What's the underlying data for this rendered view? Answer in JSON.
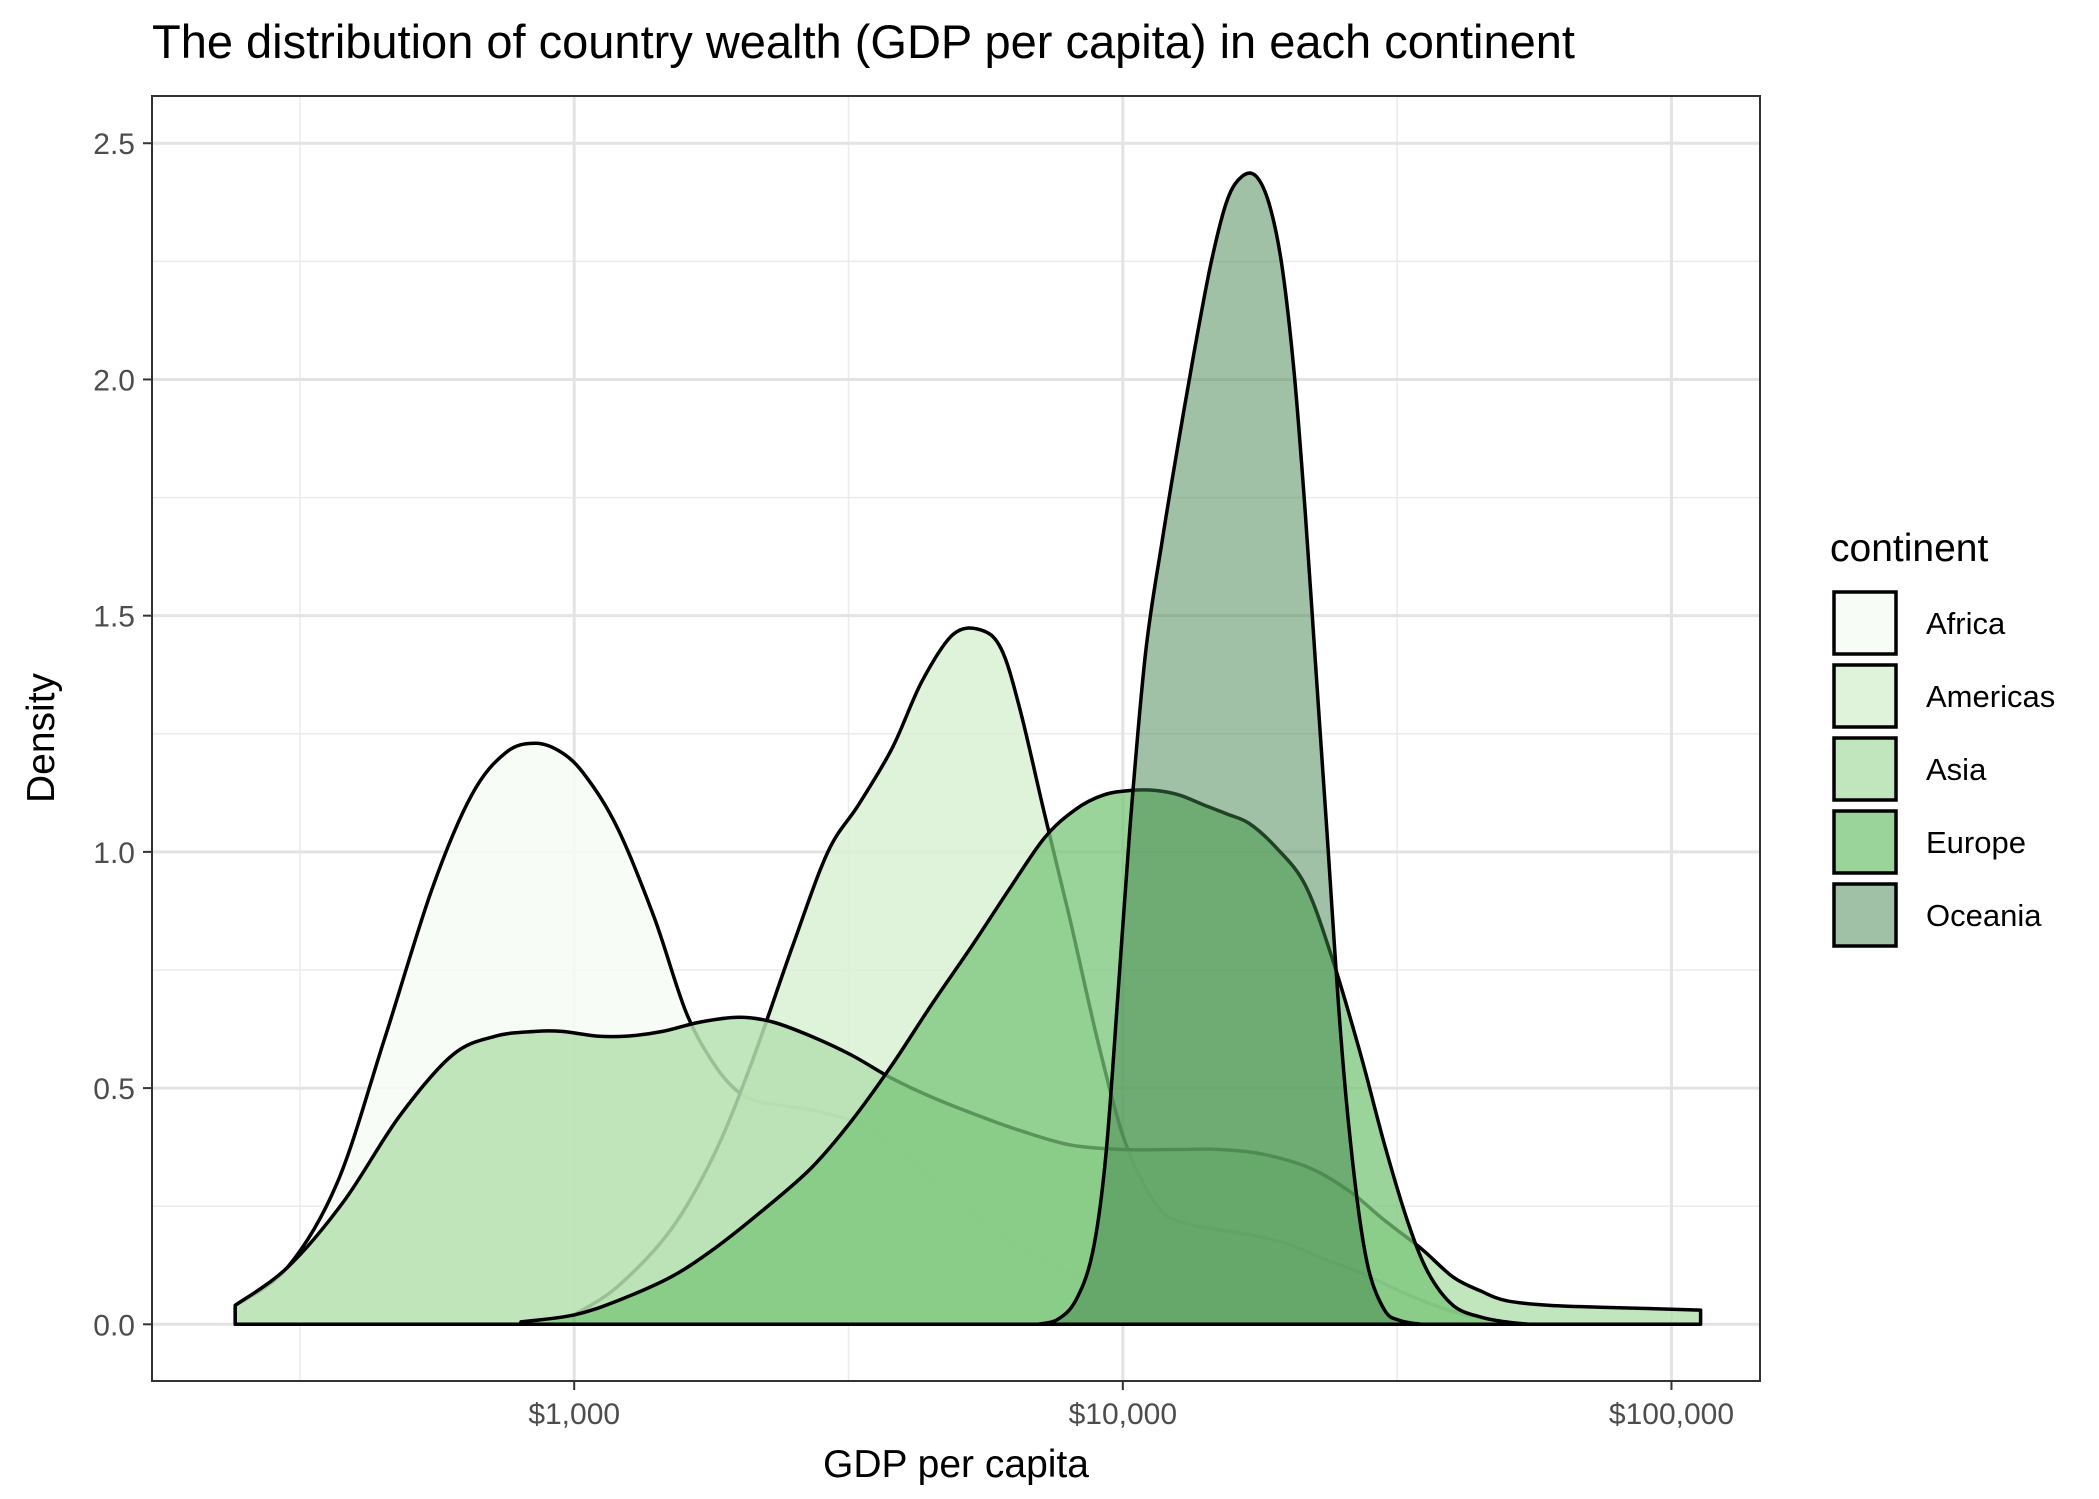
{
  "chart_data": {
    "type": "area",
    "title": "The distribution of country wealth (GDP per capita) in each continent",
    "xlabel": "GDP per capita",
    "ylabel": "Density",
    "x_scale": "log10",
    "xlim": [
      170,
      145000
    ],
    "ylim": [
      -0.12,
      2.6
    ],
    "x_ticks": [
      {
        "value": 1000,
        "label": "$1,000"
      },
      {
        "value": 10000,
        "label": "$10,000"
      },
      {
        "value": 100000,
        "label": "$100,000"
      }
    ],
    "y_ticks": [
      {
        "value": 0,
        "label": "0.0"
      },
      {
        "value": 0.5,
        "label": "0.5"
      },
      {
        "value": 1,
        "label": "1.0"
      },
      {
        "value": 1.5,
        "label": "1.5"
      },
      {
        "value": 2,
        "label": "2.0"
      },
      {
        "value": 2.5,
        "label": "2.5"
      }
    ],
    "grid": true,
    "legend": {
      "title": "continent",
      "position": "right"
    },
    "series": [
      {
        "name": "Africa",
        "color": "#f7fcf5",
        "opacity": 0.85,
        "x": [
          241,
          300,
          370,
          450,
          550,
          650,
          750,
          850,
          950,
          1050,
          1200,
          1400,
          1600,
          1800,
          2000,
          2200,
          2500,
          2800,
          3200,
          3700,
          4300,
          5000,
          6000,
          7000,
          8500,
          10000,
          12000,
          15000,
          20000,
          25000,
          30000,
          40000,
          50000,
          60000
        ],
        "y": [
          0.04,
          0.12,
          0.3,
          0.6,
          0.92,
          1.12,
          1.21,
          1.23,
          1.21,
          1.16,
          1.05,
          0.86,
          0.66,
          0.55,
          0.49,
          0.47,
          0.46,
          0.45,
          0.43,
          0.39,
          0.33,
          0.26,
          0.19,
          0.14,
          0.1,
          0.07,
          0.05,
          0.03,
          0.015,
          0.01,
          0.005,
          0.002,
          0.001,
          0
        ]
      },
      {
        "name": "Americas",
        "color": "#d9f0d3",
        "opacity": 0.85,
        "x": [
          1000,
          1200,
          1500,
          1800,
          2100,
          2500,
          2900,
          3300,
          3800,
          4300,
          4900,
          5500,
          6000,
          6500,
          7200,
          8000,
          9000,
          10000,
          11000,
          12000,
          13500,
          15000,
          17000,
          20000,
          23000,
          27000,
          32000,
          37000,
          42000,
          47000,
          52000
        ],
        "y": [
          0.02,
          0.08,
          0.2,
          0.36,
          0.55,
          0.8,
          1.0,
          1.1,
          1.22,
          1.36,
          1.46,
          1.47,
          1.43,
          1.3,
          1.08,
          0.86,
          0.6,
          0.4,
          0.29,
          0.23,
          0.21,
          0.2,
          0.19,
          0.17,
          0.14,
          0.11,
          0.07,
          0.04,
          0.02,
          0.01,
          0
        ]
      },
      {
        "name": "Asia",
        "color": "#b6e0b0",
        "opacity": 0.85,
        "x": [
          241,
          300,
          380,
          480,
          600,
          720,
          850,
          950,
          1100,
          1250,
          1450,
          1700,
          2000,
          2300,
          2700,
          3200,
          3800,
          4500,
          5500,
          6500,
          8000,
          10000,
          12500,
          15000,
          18000,
          22000,
          26000,
          30000,
          35000,
          40000,
          45000,
          50000,
          60000,
          80000,
          100000,
          113000
        ],
        "y": [
          0.04,
          0.12,
          0.26,
          0.44,
          0.57,
          0.61,
          0.62,
          0.62,
          0.61,
          0.61,
          0.62,
          0.64,
          0.65,
          0.64,
          0.61,
          0.57,
          0.52,
          0.48,
          0.44,
          0.41,
          0.38,
          0.37,
          0.37,
          0.37,
          0.36,
          0.33,
          0.28,
          0.22,
          0.16,
          0.1,
          0.07,
          0.05,
          0.04,
          0.035,
          0.032,
          0.03
        ]
      },
      {
        "name": "Europe",
        "color": "#78c679",
        "opacity": 0.75,
        "x": [
          800,
          1000,
          1200,
          1500,
          1800,
          2200,
          2700,
          3200,
          3800,
          4500,
          5300,
          6200,
          7200,
          8200,
          9200,
          10300,
          11500,
          12700,
          14000,
          15500,
          17000,
          19000,
          21500,
          24000,
          27000,
          30000,
          33000,
          36000,
          40000,
          45000,
          50000,
          55000
        ],
        "y": [
          0.005,
          0.02,
          0.05,
          0.1,
          0.16,
          0.24,
          0.33,
          0.43,
          0.55,
          0.68,
          0.8,
          0.92,
          1.03,
          1.09,
          1.12,
          1.13,
          1.13,
          1.12,
          1.1,
          1.08,
          1.06,
          1.01,
          0.93,
          0.78,
          0.58,
          0.38,
          0.22,
          0.11,
          0.04,
          0.015,
          0.005,
          0
        ]
      },
      {
        "name": "Oceania",
        "color": "#41844c",
        "opacity": 0.5,
        "x": [
          7000,
          7600,
          8200,
          8800,
          9300,
          9800,
          10300,
          11000,
          11800,
          12600,
          13500,
          14500,
          15500,
          16500,
          17500,
          18500,
          19500,
          20500,
          21500,
          22500,
          23500,
          25000,
          26500,
          28000,
          30000,
          32000,
          35000
        ],
        "y": [
          0,
          0.01,
          0.05,
          0.15,
          0.35,
          0.7,
          1.05,
          1.42,
          1.66,
          1.86,
          2.06,
          2.25,
          2.38,
          2.43,
          2.43,
          2.37,
          2.24,
          2.02,
          1.72,
          1.38,
          1.06,
          0.6,
          0.3,
          0.12,
          0.03,
          0.008,
          0
        ]
      }
    ]
  }
}
